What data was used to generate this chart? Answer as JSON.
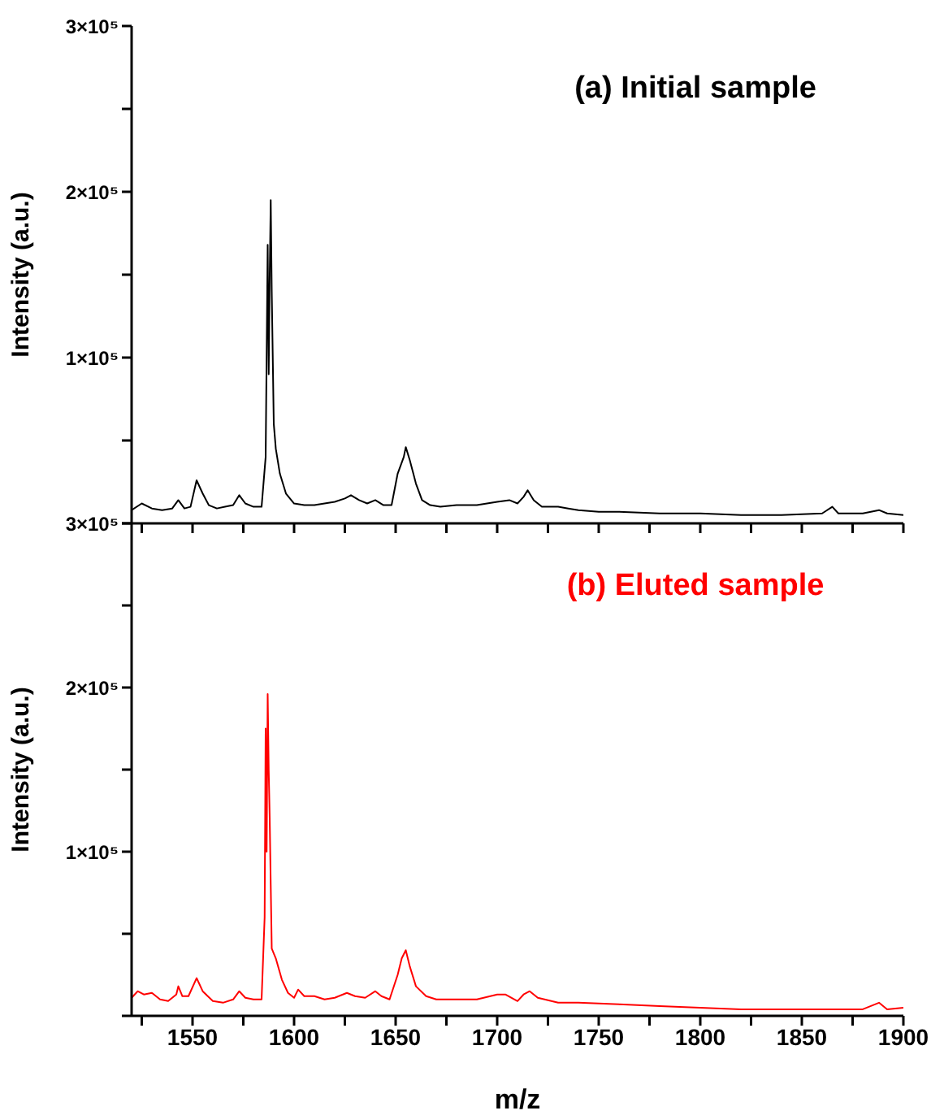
{
  "chart_data": [
    {
      "type": "line",
      "ylabel": "Intensity (a.u.)",
      "annotations": [
        "(a) Initial sample"
      ],
      "tick_labels": "y",
      "grid": false,
      "marker": "none",
      "line_style": "solid",
      "xlim": [
        1520,
        1900
      ],
      "xticks": [
        {
          "value": 1525,
          "label": null
        },
        1550,
        {
          "value": 1575,
          "label": null
        },
        1600,
        {
          "value": 1625,
          "label": null
        },
        1650,
        {
          "value": 1675,
          "label": null
        },
        1700,
        {
          "value": 1725,
          "label": null
        },
        1750,
        {
          "value": 1775,
          "label": null
        },
        1800,
        {
          "value": 1825,
          "label": null
        },
        1850,
        {
          "value": 1875,
          "label": null
        },
        1900
      ],
      "ylim": [
        0,
        300000
      ],
      "yticks": [
        {
          "value": 0,
          "label": null
        },
        {
          "value": 50000,
          "label": null
        },
        {
          "value": 100000,
          "label": "1×10⁵"
        },
        {
          "value": 150000,
          "label": null
        },
        {
          "value": 200000,
          "label": "2×10⁵"
        },
        {
          "value": 250000,
          "label": null
        },
        {
          "value": 300000,
          "label": "3×10⁵"
        }
      ],
      "x": [
        1520,
        1525,
        1530,
        1535,
        1540,
        1543,
        1546,
        1549,
        1552,
        1555,
        1558,
        1562,
        1566,
        1570,
        1573,
        1576,
        1580,
        1584,
        1586,
        1587,
        1587.5,
        1588,
        1588.5,
        1589,
        1589.5,
        1590,
        1591,
        1593,
        1596,
        1600,
        1605,
        1610,
        1615,
        1620,
        1625,
        1628,
        1632,
        1636,
        1640,
        1644,
        1648,
        1651,
        1654,
        1655,
        1657,
        1660,
        1663,
        1667,
        1672,
        1680,
        1690,
        1700,
        1706,
        1710,
        1713,
        1715,
        1718,
        1722,
        1730,
        1735,
        1740,
        1750,
        1760,
        1780,
        1800,
        1820,
        1840,
        1860,
        1865,
        1868,
        1880,
        1888,
        1892,
        1900
      ],
      "series": [
        {
          "color": "#000000",
          "values": [
            8000,
            12000,
            9000,
            8000,
            9000,
            14000,
            9000,
            10000,
            26000,
            18000,
            11000,
            9000,
            10000,
            11000,
            17000,
            12000,
            10000,
            10000,
            40000,
            168000,
            90000,
            150000,
            195000,
            140000,
            100000,
            60000,
            45000,
            30000,
            18000,
            12000,
            11000,
            11000,
            12000,
            13000,
            15000,
            17000,
            14000,
            12000,
            14000,
            11000,
            11000,
            30000,
            40000,
            46000,
            38000,
            24000,
            14000,
            11000,
            10000,
            11000,
            11000,
            13000,
            14000,
            12000,
            16000,
            20000,
            14000,
            10000,
            10000,
            9000,
            8000,
            7000,
            7000,
            6000,
            6000,
            5000,
            5000,
            6000,
            10000,
            6000,
            6000,
            8000,
            6000,
            5000
          ]
        }
      ]
    },
    {
      "type": "line",
      "xlabel": "m/z",
      "ylabel": "Intensity (a.u.)",
      "annotations": [
        "(b) Eluted sample"
      ],
      "grid": false,
      "marker": "none",
      "line_style": "solid",
      "xlim": [
        1520,
        1900
      ],
      "xticks": [
        {
          "value": 1525,
          "label": null
        },
        1550,
        {
          "value": 1575,
          "label": null
        },
        1600,
        {
          "value": 1625,
          "label": null
        },
        1650,
        {
          "value": 1675,
          "label": null
        },
        1700,
        {
          "value": 1725,
          "label": null
        },
        1750,
        {
          "value": 1775,
          "label": null
        },
        1800,
        {
          "value": 1825,
          "label": null
        },
        1850,
        {
          "value": 1875,
          "label": null
        },
        1900
      ],
      "ylim": [
        0,
        300000
      ],
      "yticks": [
        {
          "value": 0,
          "label": null
        },
        {
          "value": 50000,
          "label": null
        },
        {
          "value": 100000,
          "label": "1×10⁵"
        },
        {
          "value": 150000,
          "label": null
        },
        {
          "value": 200000,
          "label": "2×10⁵"
        },
        {
          "value": 250000,
          "label": null
        },
        {
          "value": 300000,
          "label": "3×10⁵"
        }
      ],
      "x": [
        1520,
        1523,
        1526,
        1530,
        1534,
        1538,
        1542,
        1543,
        1545,
        1548,
        1552,
        1555,
        1560,
        1565,
        1570,
        1573,
        1576,
        1580,
        1584,
        1585.5,
        1586,
        1586.5,
        1587,
        1587.5,
        1588,
        1588.5,
        1589,
        1591,
        1594,
        1597,
        1600,
        1602,
        1605,
        1610,
        1615,
        1620,
        1626,
        1630,
        1635,
        1640,
        1643,
        1647,
        1651,
        1653,
        1655,
        1657,
        1660,
        1665,
        1670,
        1680,
        1690,
        1700,
        1704,
        1710,
        1713,
        1716,
        1720,
        1730,
        1740,
        1760,
        1780,
        1800,
        1820,
        1840,
        1860,
        1880,
        1888,
        1892,
        1900
      ],
      "series": [
        {
          "color": "#ff0000",
          "values": [
            11000,
            15000,
            13000,
            14000,
            10000,
            9000,
            13000,
            18000,
            12000,
            12000,
            23000,
            15000,
            9000,
            8000,
            10000,
            15000,
            11000,
            10000,
            10000,
            60000,
            175000,
            100000,
            196000,
            150000,
            120000,
            80000,
            41000,
            35000,
            22000,
            14000,
            11000,
            16000,
            12000,
            12000,
            10000,
            11000,
            14000,
            12000,
            11000,
            15000,
            12000,
            10000,
            25000,
            35000,
            40000,
            30000,
            18000,
            12000,
            10000,
            10000,
            10000,
            13000,
            13000,
            9000,
            13000,
            15000,
            11000,
            8000,
            8000,
            7000,
            6000,
            5000,
            4000,
            4000,
            4000,
            4000,
            8000,
            4000,
            5000
          ]
        }
      ]
    }
  ]
}
